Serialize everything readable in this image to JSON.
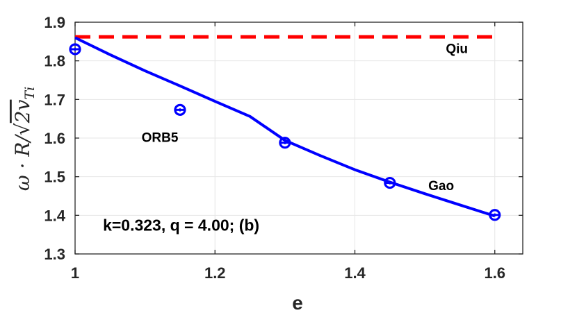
{
  "chart_data": {
    "type": "line",
    "xlabel": "e",
    "ylabel": "ω · R/√2v_Ti",
    "ylabel_parts": {
      "lhs": "ω · R/",
      "root": "√",
      "radicand": "2v",
      "subscript": "Ti"
    },
    "xlim": [
      1,
      1.64
    ],
    "ylim": [
      1.3,
      1.9
    ],
    "xticks": [
      1,
      1.2,
      1.4,
      1.6
    ],
    "xtick_labels": [
      "1",
      "1.2",
      "1.4",
      "1.6"
    ],
    "yticks": [
      1.3,
      1.4,
      1.5,
      1.6,
      1.7,
      1.8,
      1.9
    ],
    "ytick_labels": [
      "1.3",
      "1.4",
      "1.5",
      "1.6",
      "1.7",
      "1.8",
      "1.9"
    ],
    "grid": true,
    "series": [
      {
        "name": "Qiu",
        "style": "dashed-line",
        "color": "#ff0000",
        "x": [
          1,
          1.6
        ],
        "y": [
          1.862,
          1.862
        ]
      },
      {
        "name": "Gao",
        "style": "solid-line",
        "color": "#0000ff",
        "x": [
          1.0,
          1.05,
          1.1,
          1.15,
          1.2,
          1.25,
          1.3,
          1.35,
          1.4,
          1.45,
          1.5,
          1.55,
          1.6
        ],
        "y": [
          1.86,
          1.816,
          1.774,
          1.735,
          1.695,
          1.656,
          1.594,
          1.555,
          1.518,
          1.486,
          1.456,
          1.427,
          1.398
        ]
      },
      {
        "name": "ORB5",
        "style": "markers",
        "color": "#0000ff",
        "x": [
          1.0,
          1.15,
          1.3,
          1.45,
          1.6
        ],
        "y": [
          1.83,
          1.673,
          1.588,
          1.484,
          1.401
        ],
        "yerr": [
          0.004,
          0.004,
          0.004,
          0.004,
          0.004
        ]
      }
    ],
    "annotations": [
      "Qiu",
      "ORB5",
      "Gao"
    ],
    "annotation_anchors": [
      {
        "text": "Qiu",
        "x": 1.53,
        "y": 1.82
      },
      {
        "text": "ORB5",
        "x": 1.095,
        "y": 1.59
      },
      {
        "text": "Gao",
        "x": 1.505,
        "y": 1.465
      }
    ],
    "box_text": "k=0.323, q = 4.00; (b)",
    "box_text_anchor": {
      "x": 1.01,
      "y": 1.36
    }
  }
}
